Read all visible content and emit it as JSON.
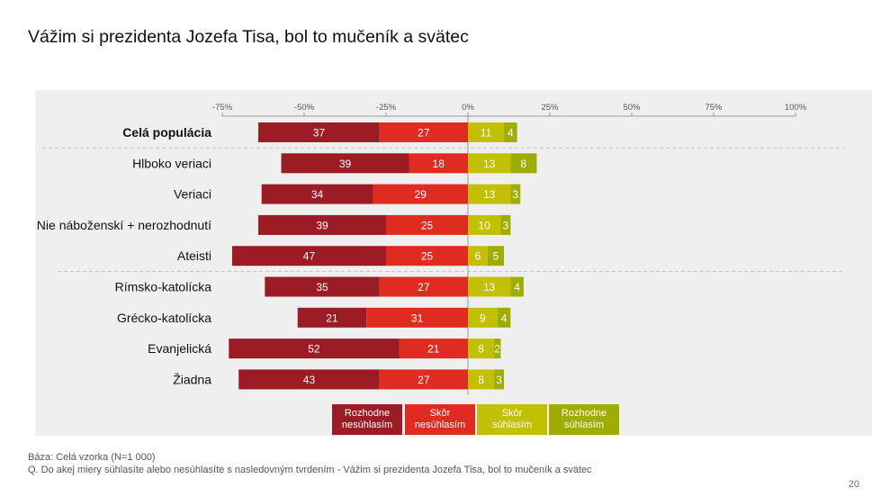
{
  "title": "Vážim si prezidenta Jozefa Tisa, bol to mučeník a svätec",
  "colors": {
    "rozhodne_nesuhlasim": "#9b1c24",
    "skor_nesuhlasim": "#e02b20",
    "skor_suhlasim": "#c2c000",
    "rozhodne_suhlasim": "#9fac00"
  },
  "chart_data": {
    "type": "bar",
    "orientation": "horizontal-diverging-stacked",
    "title": "Vážim si prezidenta Jozefa Tisa, bol to mučeník a svätec",
    "xlim": [
      -75,
      100
    ],
    "xticks": [
      -75,
      -50,
      -25,
      0,
      25,
      50,
      75,
      100
    ],
    "xtick_labels": [
      "-75%",
      "-50%",
      "-25%",
      "0%",
      "25%",
      "50%",
      "75%",
      "100%"
    ],
    "categories": [
      "Celá populácia",
      "Hlboko veriaci",
      "Veriaci",
      "Nie náboženskí + nerozhodnutí",
      "Ateisti",
      "Rímsko-katolícka",
      "Grécko-katolícka",
      "Evanjelická",
      "Žiadna"
    ],
    "series": [
      {
        "name": "Rozhodne nesúhlasím",
        "side": "negative",
        "values": [
          37,
          39,
          34,
          39,
          47,
          35,
          21,
          52,
          43
        ]
      },
      {
        "name": "Skôr nesúhlasím",
        "side": "negative",
        "values": [
          27,
          18,
          29,
          25,
          25,
          27,
          31,
          21,
          27
        ]
      },
      {
        "name": "Skôr súhlasím",
        "side": "positive",
        "values": [
          11,
          13,
          13,
          10,
          6,
          13,
          9,
          8,
          8
        ]
      },
      {
        "name": "Rozhodne súhlasím",
        "side": "positive",
        "values": [
          4,
          8,
          3,
          3,
          5,
          4,
          4,
          2,
          3
        ]
      }
    ],
    "group_separators_after": [
      "Celá populácia",
      "Ateisti"
    ]
  },
  "legend": {
    "rozhodne_nesuhlasim": "Rozhodne nesúhlasím",
    "skor_nesuhlasim": "Skôr nesúhlasím",
    "skor_suhlasim": "Skôr súhlasím",
    "rozhodne_suhlasim": "Rozhodne súhlasím"
  },
  "footnotes": {
    "base": "Báza: Celá vzorka (N=1 000)",
    "question": "Q. Do akej miery súhlasíte alebo nesúhlasíte s nasledovným tvrdením -  Vážim si prezidenta Jozefa Tisa, bol to mučeník a svätec"
  },
  "page_number": "20"
}
